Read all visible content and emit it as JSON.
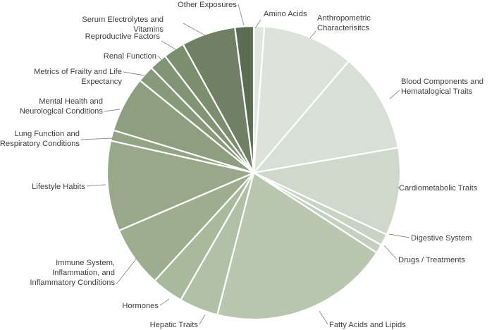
{
  "chart_data": {
    "type": "pie",
    "title": "",
    "slices": [
      {
        "label": "Amino Acids",
        "value": 1.2,
        "color": "#e1e7df"
      },
      {
        "label": "Anthropometric Characterisitcs",
        "value": 10.3,
        "color": "#dde3da"
      },
      {
        "label": "Blood Components and Hematalogical Traits",
        "value": 11.3,
        "color": "#d8dfd4"
      },
      {
        "label": "Cardiometabolic Traits",
        "value": 9.9,
        "color": "#cfd8ca"
      },
      {
        "label": "Digestive System",
        "value": 1.3,
        "color": "#c9d3c3"
      },
      {
        "label": "Drugs / Treatments",
        "value": 1.0,
        "color": "#c4cfbf"
      },
      {
        "label": "Fatty Acids and Lipids",
        "value": 20.3,
        "color": "#b9c7b0"
      },
      {
        "label": "Hepatic Traits",
        "value": 4.4,
        "color": "#b1c1a7"
      },
      {
        "label": "Hormones",
        "value": 3.6,
        "color": "#a8b99c"
      },
      {
        "label": "Immune System, Inflammation, and Inflammatory Conditions",
        "value": 6.9,
        "color": "#9cae8d"
      },
      {
        "label": "Lifestyle Habits",
        "value": 10.2,
        "color": "#97a989"
      },
      {
        "label": "Lung Function and Respiratory Conditions",
        "value": 1.2,
        "color": "#92a484"
      },
      {
        "label": "Mental Health and Neurological Conditions",
        "value": 6.3,
        "color": "#8d9f7f"
      },
      {
        "label": "Metrics of Frailty and Life Expectancy",
        "value": 1.9,
        "color": "#879a7a"
      },
      {
        "label": "Renal Function",
        "value": 2.0,
        "color": "#819474"
      },
      {
        "label": "Reproductive Factors",
        "value": 2.4,
        "color": "#7b8e6e"
      },
      {
        "label": "Serum Electrolytes and Vitamins",
        "value": 6.1,
        "color": "#6f8064"
      },
      {
        "label": "Other Exposures",
        "value": 2.1,
        "color": "#5c6e52"
      }
    ]
  }
}
